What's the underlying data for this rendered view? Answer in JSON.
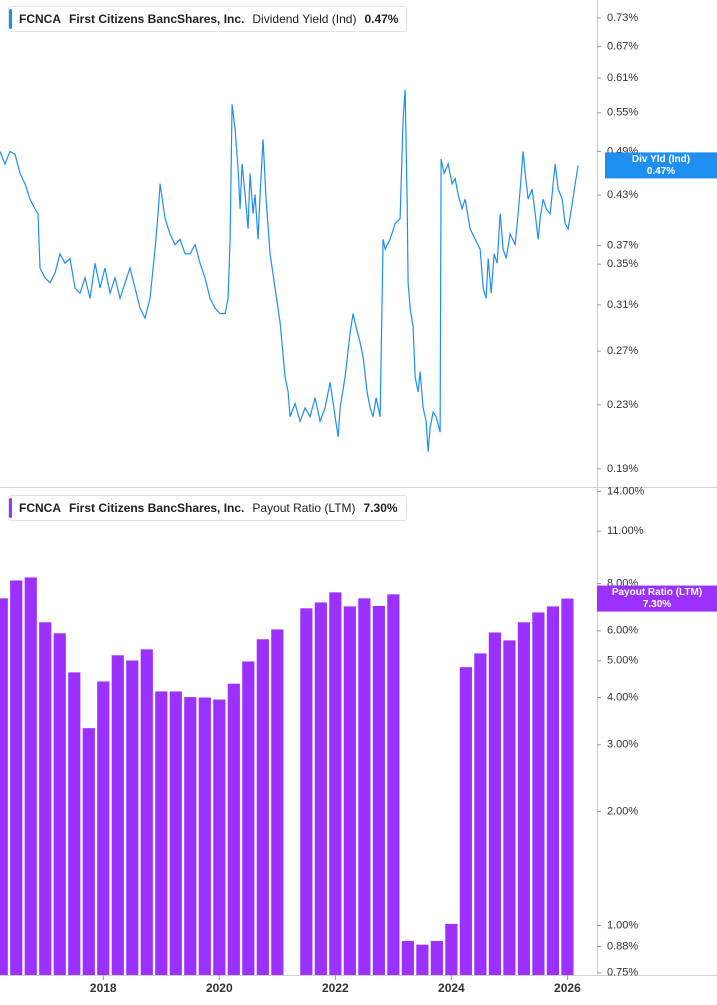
{
  "chart_data": [
    {
      "type": "line",
      "ticker": "FCNCA",
      "company": "First Citizens BancShares, Inc.",
      "title": "Dividend Yield (Ind)",
      "log_scale": true,
      "ylim": [
        0.18,
        0.77
      ],
      "xlim": [
        2016.22,
        2026.51
      ],
      "yticks": [
        {
          "value": 0.73,
          "label": "0.73%"
        },
        {
          "value": 0.67,
          "label": "0.67%"
        },
        {
          "value": 0.61,
          "label": "0.61%"
        },
        {
          "value": 0.55,
          "label": "0.55%"
        },
        {
          "value": 0.49,
          "label": "0.49%"
        },
        {
          "value": 0.43,
          "label": "0.43%"
        },
        {
          "value": 0.37,
          "label": "0.37%"
        },
        {
          "value": 0.35,
          "label": "0.35%"
        },
        {
          "value": 0.31,
          "label": "0.31%"
        },
        {
          "value": 0.27,
          "label": "0.27%"
        },
        {
          "value": 0.23,
          "label": "0.23%"
        },
        {
          "value": 0.19,
          "label": "0.19%"
        }
      ],
      "x": [
        2016.22,
        2016.306,
        2016.392,
        2016.479,
        2016.565,
        2016.651,
        2016.737,
        2016.823,
        2016.875,
        2016.91,
        2016.996,
        2017.082,
        2017.168,
        2017.254,
        2017.341,
        2017.427,
        2017.513,
        2017.599,
        2017.686,
        2017.772,
        2017.858,
        2017.944,
        2018.03,
        2018.117,
        2018.203,
        2018.289,
        2018.375,
        2018.461,
        2018.548,
        2018.634,
        2018.72,
        2018.806,
        2018.892,
        2018.944,
        2018.979,
        2019.065,
        2019.151,
        2019.237,
        2019.323,
        2019.41,
        2019.496,
        2019.582,
        2019.668,
        2019.754,
        2019.841,
        2019.927,
        2020.013,
        2020.099,
        2020.151,
        2020.186,
        2020.22,
        2020.272,
        2020.323,
        2020.358,
        2020.392,
        2020.444,
        2020.496,
        2020.53,
        2020.582,
        2020.616,
        2020.668,
        2020.703,
        2020.754,
        2020.806,
        2020.875,
        2020.961,
        2021.048,
        2021.134,
        2021.186,
        2021.22,
        2021.306,
        2021.392,
        2021.479,
        2021.565,
        2021.651,
        2021.737,
        2021.823,
        2021.91,
        2021.996,
        2022.048,
        2022.082,
        2022.168,
        2022.254,
        2022.306,
        2022.358,
        2022.427,
        2022.479,
        2022.548,
        2022.599,
        2022.651,
        2022.703,
        2022.772,
        2022.823,
        2022.858,
        2022.944,
        2023.03,
        2023.116,
        2023.168,
        2023.203,
        2023.237,
        2023.254,
        2023.289,
        2023.341,
        2023.375,
        2023.427,
        2023.461,
        2023.513,
        2023.565,
        2023.599,
        2023.634,
        2023.686,
        2023.737,
        2023.806,
        2023.823,
        2023.875,
        2023.944,
        2024.013,
        2024.065,
        2024.116,
        2024.185,
        2024.237,
        2024.323,
        2024.41,
        2024.496,
        2024.548,
        2024.599,
        2024.634,
        2024.686,
        2024.737,
        2024.789,
        2024.841,
        2024.892,
        2024.944,
        2025.013,
        2025.099,
        2025.151,
        2025.186,
        2025.237,
        2025.272,
        2025.323,
        2025.392,
        2025.444,
        2025.496,
        2025.53,
        2025.582,
        2025.634,
        2025.703,
        2025.789,
        2025.841,
        2025.91,
        2025.961,
        2026.013,
        2026.082,
        2026.134,
        2026.185
      ],
      "series": [
        {
          "name": "Div Yld (Ind)",
          "color": "#1f8ef1",
          "current_label": "0.47%",
          "values": [
            0.49,
            0.472,
            0.49,
            0.486,
            0.459,
            0.445,
            0.425,
            0.413,
            0.407,
            0.346,
            0.336,
            0.331,
            0.341,
            0.361,
            0.351,
            0.356,
            0.326,
            0.321,
            0.336,
            0.316,
            0.351,
            0.326,
            0.346,
            0.321,
            0.336,
            0.316,
            0.331,
            0.346,
            0.326,
            0.307,
            0.298,
            0.316,
            0.366,
            0.407,
            0.445,
            0.401,
            0.383,
            0.371,
            0.377,
            0.361,
            0.361,
            0.371,
            0.351,
            0.336,
            0.316,
            0.307,
            0.302,
            0.302,
            0.316,
            0.377,
            0.564,
            0.524,
            0.465,
            0.413,
            0.472,
            0.431,
            0.389,
            0.459,
            0.407,
            0.431,
            0.377,
            0.431,
            0.508,
            0.425,
            0.361,
            0.326,
            0.294,
            0.25,
            0.239,
            0.222,
            0.231,
            0.219,
            0.228,
            0.222,
            0.235,
            0.219,
            0.228,
            0.246,
            0.222,
            0.209,
            0.228,
            0.25,
            0.285,
            0.302,
            0.29,
            0.277,
            0.265,
            0.239,
            0.228,
            0.222,
            0.235,
            0.222,
            0.377,
            0.366,
            0.377,
            0.395,
            0.401,
            0.539,
            0.589,
            0.425,
            0.331,
            0.307,
            0.29,
            0.25,
            0.239,
            0.254,
            0.228,
            0.219,
            0.2,
            0.215,
            0.225,
            0.222,
            0.212,
            0.479,
            0.459,
            0.472,
            0.445,
            0.452,
            0.431,
            0.413,
            0.425,
            0.389,
            0.377,
            0.366,
            0.326,
            0.316,
            0.356,
            0.321,
            0.361,
            0.351,
            0.407,
            0.366,
            0.356,
            0.383,
            0.371,
            0.407,
            0.438,
            0.49,
            0.459,
            0.425,
            0.438,
            0.407,
            0.377,
            0.401,
            0.425,
            0.413,
            0.407,
            0.472,
            0.438,
            0.425,
            0.395,
            0.389,
            0.419,
            0.445,
            0.47
          ]
        }
      ]
    },
    {
      "type": "bar",
      "ticker": "FCNCA",
      "company": "First Citizens BancShares, Inc.",
      "title": "Payout Ratio (LTM)",
      "log_scale": true,
      "ylim": [
        0.74,
        14.3
      ],
      "xlim": [
        2016.22,
        2026.51
      ],
      "yticks": [
        {
          "value": 14,
          "label": "14.00%"
        },
        {
          "value": 11,
          "label": "11.00%"
        },
        {
          "value": 8,
          "label": "8.00%"
        },
        {
          "value": 6,
          "label": "6.00%"
        },
        {
          "value": 5,
          "label": "5.00%"
        },
        {
          "value": 4,
          "label": "4.00%"
        },
        {
          "value": 3,
          "label": "3.00%"
        },
        {
          "value": 2,
          "label": "2.00%"
        },
        {
          "value": 1,
          "label": "1.00%"
        },
        {
          "value": 0.88,
          "label": "0.88%"
        },
        {
          "value": 0.75,
          "label": "0.75%"
        }
      ],
      "xticks": [
        2018,
        2020,
        2022,
        2024,
        2026
      ],
      "x": [
        2016.25,
        2016.5,
        2016.75,
        2017,
        2017.25,
        2017.5,
        2017.75,
        2018,
        2018.25,
        2018.5,
        2018.75,
        2019,
        2019.25,
        2019.5,
        2019.75,
        2020,
        2020.25,
        2020.5,
        2020.75,
        2021,
        2021.5,
        2021.75,
        2022,
        2022.25,
        2022.5,
        2022.75,
        2023,
        2023.25,
        2023.5,
        2023.75,
        2024,
        2024.25,
        2024.5,
        2024.75,
        2025,
        2025.25,
        2025.5,
        2025.75,
        2026
      ],
      "series": [
        {
          "name": "Payout Ratio (LTM)",
          "color": "#9b30ff",
          "current_label": "7.30%",
          "values": [
            7.31,
            8.15,
            8.3,
            6.32,
            5.91,
            4.66,
            3.32,
            4.41,
            5.17,
            5.01,
            5.36,
            4.15,
            4.15,
            4.01,
            4.0,
            3.95,
            4.35,
            4.98,
            5.7,
            6.05,
            6.88,
            7.13,
            7.58,
            6.96,
            7.31,
            6.98,
            7.49,
            0.91,
            0.89,
            0.91,
            1.01,
            4.81,
            5.23,
            5.94,
            5.66,
            6.32,
            6.71,
            6.96,
            7.3
          ]
        }
      ]
    }
  ]
}
